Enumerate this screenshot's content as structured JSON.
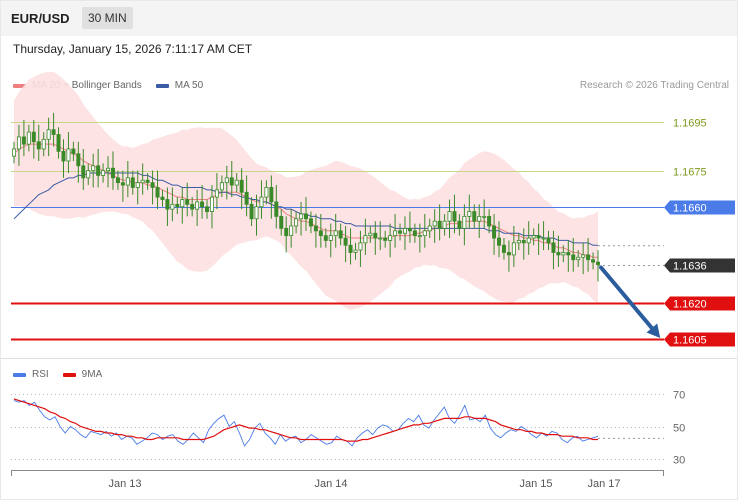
{
  "header": {
    "symbol": "EUR/USD",
    "timeframe": "30 MIN",
    "datetime": "Thursday, January 15, 2026 7:11:17 AM CET",
    "credit": "Research © 2026 Trading Central"
  },
  "legend": {
    "ma20_label": "MA 20 + Bollinger Bands",
    "ma50_label": "MA 50",
    "rsi_label": "RSI",
    "rsi_ma_label": "9MA"
  },
  "colors": {
    "ma20": "#f08080",
    "ma50": "#3b5ba5",
    "band_fill": "#fde0e0",
    "candle": "#3a8a2a",
    "resistance": "#c5d88a",
    "pivot": "#4a7be8",
    "support": "#e01010",
    "current": "#333333",
    "rsi": "#4a7be8",
    "rsi_ma": "#e01010",
    "arrow": "#2b5d9e"
  },
  "chart_data": [
    {
      "type": "candlestick",
      "x_labels": [
        "Jan 13",
        "Jan 14",
        "Jan 15",
        "Jan 17"
      ],
      "ylim": [
        1.1598,
        1.1706
      ],
      "levels": [
        {
          "label": "1.1695",
          "value": 1.1695,
          "kind": "resistance"
        },
        {
          "label": "1.1675",
          "value": 1.1675,
          "kind": "resistance"
        },
        {
          "label": "1.1660",
          "value": 1.166,
          "kind": "pivot"
        },
        {
          "label": "1.1636",
          "value": 1.1636,
          "kind": "current"
        },
        {
          "label": "1.1620",
          "value": 1.162,
          "kind": "support"
        },
        {
          "label": "1.1605",
          "value": 1.1605,
          "kind": "support"
        }
      ],
      "close": [
        1.1684,
        1.1689,
        1.1686,
        1.1691,
        1.1687,
        1.1684,
        1.1688,
        1.1692,
        1.169,
        1.1683,
        1.1679,
        1.1684,
        1.1682,
        1.1677,
        1.1672,
        1.1675,
        1.1677,
        1.1673,
        1.1675,
        1.1676,
        1.1672,
        1.167,
        1.1669,
        1.1672,
        1.1668,
        1.167,
        1.1671,
        1.167,
        1.1668,
        1.1664,
        1.1663,
        1.1659,
        1.1661,
        1.166,
        1.1663,
        1.1661,
        1.1659,
        1.1662,
        1.166,
        1.1658,
        1.1664,
        1.1667,
        1.167,
        1.1672,
        1.1669,
        1.1671,
        1.1666,
        1.1661,
        1.1655,
        1.166,
        1.1664,
        1.1668,
        1.1662,
        1.1656,
        1.1651,
        1.1648,
        1.1652,
        1.1655,
        1.1657,
        1.1655,
        1.1652,
        1.165,
        1.1648,
        1.1646,
        1.1648,
        1.165,
        1.1647,
        1.1644,
        1.1641,
        1.1642,
        1.1645,
        1.1648,
        1.1649,
        1.1647,
        1.1647,
        1.1646,
        1.1648,
        1.165,
        1.1649,
        1.1651,
        1.165,
        1.1648,
        1.1648,
        1.165,
        1.1652,
        1.1654,
        1.1651,
        1.1654,
        1.1658,
        1.1654,
        1.1651,
        1.1656,
        1.1658,
        1.1654,
        1.1656,
        1.1656,
        1.1652,
        1.1647,
        1.1644,
        1.1641,
        1.164,
        1.1645,
        1.1646,
        1.1645,
        1.1647,
        1.1648,
        1.1647,
        1.1647,
        1.1645,
        1.1641,
        1.164,
        1.1641,
        1.164,
        1.1638,
        1.1639,
        1.164,
        1.1638,
        1.1637,
        1.1636
      ],
      "ma20": [
        1.1682,
        1.1684,
        1.1685,
        1.1686,
        1.1686,
        1.1686,
        1.1686,
        1.1686,
        1.1686,
        1.1685,
        1.1684,
        1.1683,
        1.1682,
        1.1681,
        1.1679,
        1.1678,
        1.1677,
        1.1676,
        1.1675,
        1.1674,
        1.1673,
        1.1672,
        1.1671,
        1.1671,
        1.167,
        1.167,
        1.167,
        1.1669,
        1.1669,
        1.1668,
        1.1667,
        1.1666,
        1.1665,
        1.1664,
        1.1664,
        1.1663,
        1.1663,
        1.1663,
        1.1663,
        1.1663,
        1.1664,
        1.1665,
        1.1666,
        1.1666,
        1.1666,
        1.1666,
        1.1665,
        1.1664,
        1.1663,
        1.1662,
        1.1662,
        1.1662,
        1.1661,
        1.166,
        1.1659,
        1.1657,
        1.1656,
        1.1655,
        1.1654,
        1.1654,
        1.1653,
        1.1652,
        1.1651,
        1.165,
        1.165,
        1.165,
        1.1649,
        1.1648,
        1.1647,
        1.1647,
        1.1647,
        1.1647,
        1.1647,
        1.1647,
        1.1647,
        1.1647,
        1.1647,
        1.1648,
        1.1648,
        1.1648,
        1.1648,
        1.1649,
        1.1649,
        1.165,
        1.165,
        1.1651,
        1.1651,
        1.1652,
        1.1653,
        1.1653,
        1.1653,
        1.1654,
        1.1654,
        1.1654,
        1.1654,
        1.1654,
        1.1653,
        1.1652,
        1.1651,
        1.165,
        1.1649,
        1.1648,
        1.1648,
        1.1647,
        1.1647,
        1.1646,
        1.1646,
        1.1645,
        1.1645,
        1.1644,
        1.1643,
        1.1643,
        1.1642,
        1.1641,
        1.1641,
        1.164,
        1.164,
        1.1639,
        1.1639
      ],
      "ma50": [
        1.1655,
        1.1657,
        1.1659,
        1.1661,
        1.1663,
        1.1665,
        1.1666,
        1.1667,
        1.1669,
        1.167,
        1.1671,
        1.1672,
        1.1672,
        1.1673,
        1.1673,
        1.1674,
        1.1674,
        1.1674,
        1.1674,
        1.1674,
        1.1674,
        1.1674,
        1.1674,
        1.1674,
        1.1674,
        1.1674,
        1.1673,
        1.1673,
        1.1672,
        1.1671,
        1.1671,
        1.167,
        1.1669,
        1.1669,
        1.1668,
        1.1668,
        1.1668,
        1.1668,
        1.1668,
        1.1667,
        1.1667,
        1.1666,
        1.1666,
        1.1666,
        1.1665,
        1.1665,
        1.1664,
        1.1664,
        1.1663,
        1.1663,
        1.1662,
        1.1662,
        1.1661,
        1.166,
        1.166,
        1.1659,
        1.1659,
        1.1658,
        1.1657,
        1.1657,
        1.1656,
        1.1656,
        1.1655,
        1.1655,
        1.1655,
        1.1654,
        1.1654,
        1.1653,
        1.1653,
        1.1652,
        1.1652,
        1.1652,
        1.1652,
        1.1652,
        1.1652,
        1.1652,
        1.1652,
        1.1651,
        1.1651,
        1.1651,
        1.1651,
        1.1651,
        1.1651,
        1.1651,
        1.1651,
        1.1651,
        1.1651,
        1.1651,
        1.1651,
        1.1651,
        1.1651,
        1.1651,
        1.1651,
        1.1651,
        1.1651,
        1.1651,
        1.165,
        1.165,
        1.165,
        1.1649,
        1.1649,
        1.1649,
        1.1649,
        1.1648,
        1.1648,
        1.1648,
        1.1648,
        1.1647,
        1.1647,
        1.1647,
        1.1646,
        1.1646,
        1.1646,
        1.1645,
        1.1645,
        1.1645,
        1.1645,
        1.1644,
        1.1644
      ],
      "projection": {
        "from": 1.1636,
        "to": 1.1605
      }
    },
    {
      "type": "line",
      "title": "RSI",
      "ylim": [
        25,
        75
      ],
      "yticks": [
        30,
        50,
        70
      ],
      "series": [
        {
          "name": "RSI",
          "values": [
            66,
            65,
            66,
            63,
            65,
            60,
            56,
            54,
            56,
            50,
            46,
            50,
            48,
            45,
            43,
            47,
            46,
            45,
            47,
            44,
            46,
            42,
            44,
            43,
            39,
            41,
            43,
            46,
            45,
            42,
            44,
            45,
            41,
            39,
            42,
            46,
            43,
            40,
            48,
            52,
            55,
            57,
            50,
            53,
            46,
            38,
            42,
            49,
            52,
            46,
            43,
            39,
            45,
            41,
            43,
            44,
            40,
            42,
            45,
            43,
            41,
            39,
            40,
            44,
            42,
            41,
            38,
            43,
            46,
            48,
            45,
            49,
            51,
            50,
            47,
            48,
            52,
            55,
            53,
            57,
            51,
            49,
            54,
            58,
            62,
            55,
            52,
            57,
            63,
            54,
            55,
            53,
            57,
            49,
            45,
            43,
            46,
            48,
            47,
            50,
            48,
            45,
            43,
            46,
            44,
            47,
            46,
            42,
            40,
            43,
            44,
            41,
            42,
            43,
            44
          ]
        },
        {
          "name": "9MA",
          "values": [
            67,
            66,
            65,
            64,
            63,
            62,
            61,
            59,
            58,
            56,
            55,
            53,
            52,
            50,
            49,
            48,
            47,
            47,
            46,
            46,
            45,
            45,
            44,
            44,
            43,
            43,
            42,
            42,
            43,
            43,
            43,
            43,
            43,
            42,
            42,
            42,
            42,
            42,
            43,
            44,
            46,
            48,
            49,
            50,
            51,
            50,
            49,
            49,
            48,
            48,
            47,
            46,
            45,
            44,
            43,
            43,
            42,
            42,
            42,
            42,
            42,
            42,
            42,
            42,
            42,
            41,
            41,
            41,
            42,
            42,
            43,
            44,
            45,
            46,
            47,
            48,
            49,
            50,
            51,
            51,
            52,
            52,
            53,
            54,
            55,
            55,
            55,
            55,
            56,
            56,
            55,
            55,
            55,
            54,
            53,
            51,
            50,
            49,
            48,
            48,
            47,
            47,
            46,
            46,
            45,
            45,
            45,
            44,
            44,
            44,
            43,
            43,
            43,
            42,
            42
          ]
        }
      ]
    }
  ]
}
